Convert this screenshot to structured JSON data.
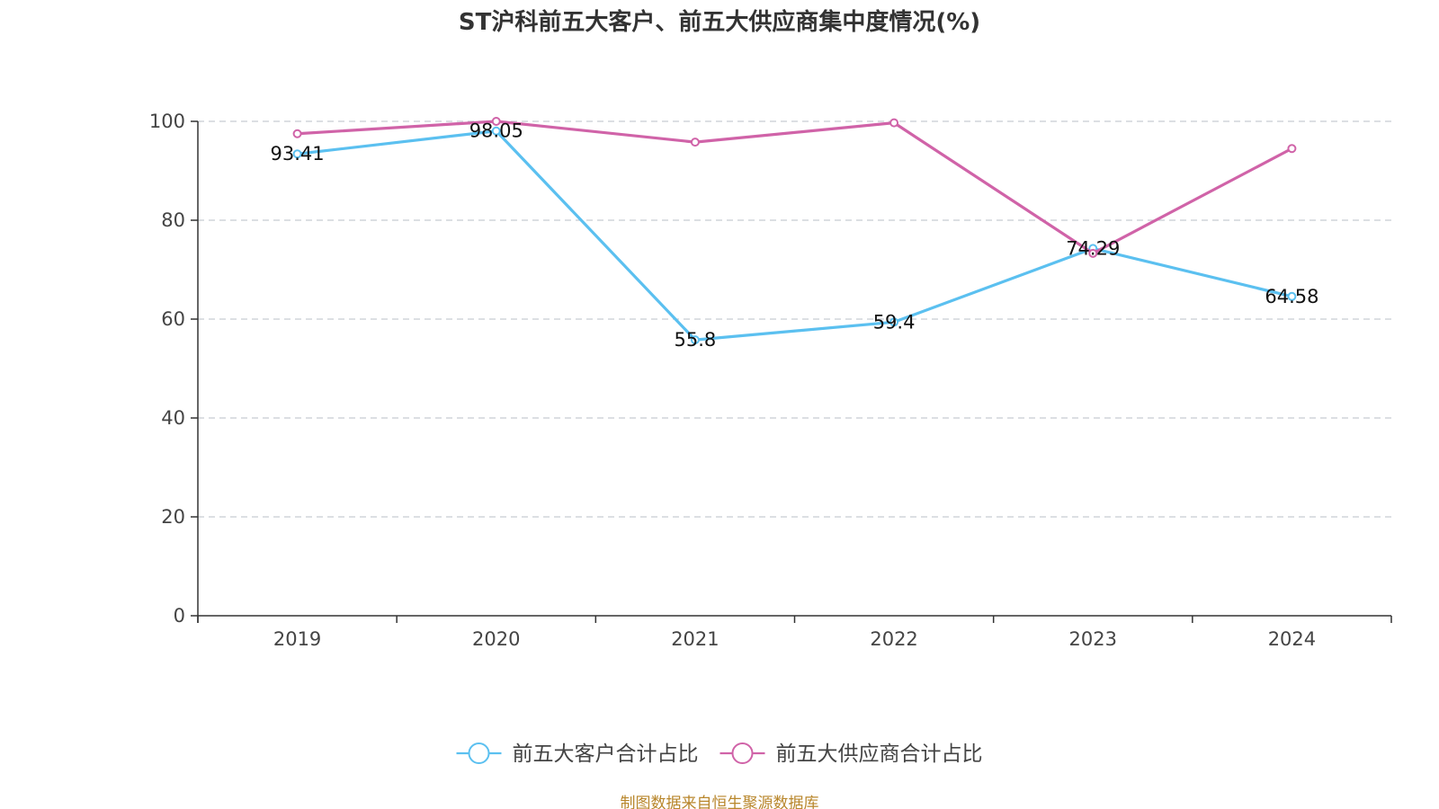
{
  "chart_data": {
    "type": "line",
    "title": "ST沪科前五大客户、前五大供应商集中度情况(%)",
    "categories": [
      "2019",
      "2020",
      "2021",
      "2022",
      "2023",
      "2024"
    ],
    "ylim": [
      0,
      100
    ],
    "yticks": [
      0,
      20,
      40,
      60,
      80,
      100
    ],
    "grid": true,
    "legend_position": "bottom-center",
    "series": [
      {
        "name": "前五大客户合计占比",
        "color": "#5bc0f0",
        "values": [
          93.41,
          98.05,
          55.8,
          59.4,
          74.29,
          64.58
        ],
        "data_labels": [
          "93.41",
          "98.05",
          "55.8",
          "59.4",
          "74.29",
          "64.58"
        ]
      },
      {
        "name": "前五大供应商合计占比",
        "color": "#d063a8",
        "values": [
          97.5,
          100.0,
          95.8,
          99.7,
          73.3,
          94.5
        ]
      }
    ],
    "source": "制图数据来自恒生聚源数据库"
  }
}
